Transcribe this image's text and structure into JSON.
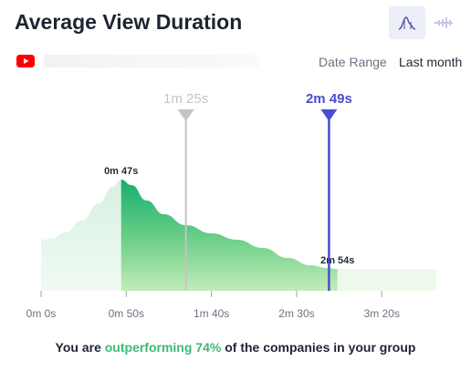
{
  "header": {
    "title": "Average View Duration"
  },
  "toolbar": {
    "distribution_icon": "bell-curve-icon",
    "comparison_icon": "strip-plot-icon"
  },
  "source": {
    "platform_icon": "youtube-icon"
  },
  "filters": {
    "date_range_label": "Date Range",
    "date_range_value": "Last month"
  },
  "chart_data": {
    "type": "area",
    "x_ticks": [
      "0m 0s",
      "0m 50s",
      "1m 40s",
      "2m 30s",
      "3m 20s"
    ],
    "x_tick_seconds": [
      0,
      50,
      100,
      150,
      200
    ],
    "xlim_seconds": [
      0,
      232
    ],
    "peak": {
      "label": "0m 47s",
      "seconds": 47
    },
    "upper_bound": {
      "label": "2m 54s",
      "seconds": 174
    },
    "group_average": {
      "label": "1m 25s",
      "seconds": 85
    },
    "your_channel": {
      "label": "2m 49s",
      "seconds": 169
    },
    "colors": {
      "primary": "#4a4dcf",
      "reference": "#c4c4c4",
      "area_dark": "#1fb374",
      "area_light": "#d9f3e1"
    }
  },
  "summary": {
    "prefix": "You are ",
    "highlight": "outperforming 74%",
    "suffix": " of the companies in your group"
  }
}
